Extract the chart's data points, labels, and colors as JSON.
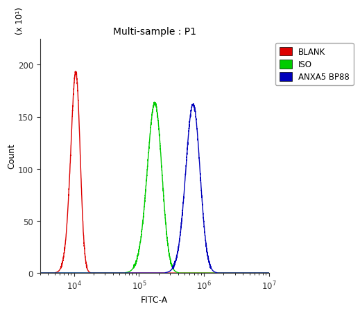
{
  "title": "Multi-sample : P1",
  "xlabel": "FITC-A",
  "ylabel": "Count",
  "y_scale_label": "(x 10¹)",
  "xlim_log": [
    3000,
    10000000.0
  ],
  "ylim": [
    0,
    225
  ],
  "yticks": [
    0,
    50,
    100,
    150,
    200
  ],
  "legend_labels": [
    "BLANK",
    "ISO",
    "ANXA5 BP88"
  ],
  "legend_colors": [
    "#dd0000",
    "#00cc00",
    "#0000bb"
  ],
  "curves": [
    {
      "color": "#dd0000",
      "peak_x_log": 4.08,
      "peak_y": 193,
      "sigma_log": 0.1,
      "skew": -1.5
    },
    {
      "color": "#00cc00",
      "peak_x_log": 5.32,
      "peak_y": 163,
      "sigma_log": 0.145,
      "skew": -1.2
    },
    {
      "color": "#0000bb",
      "peak_x_log": 5.9,
      "peak_y": 162,
      "sigma_log": 0.135,
      "skew": -1.0
    }
  ],
  "background_color": "#ffffff",
  "plot_bg_color": "#ffffff",
  "title_fontsize": 10,
  "axis_label_fontsize": 9,
  "tick_fontsize": 8.5
}
